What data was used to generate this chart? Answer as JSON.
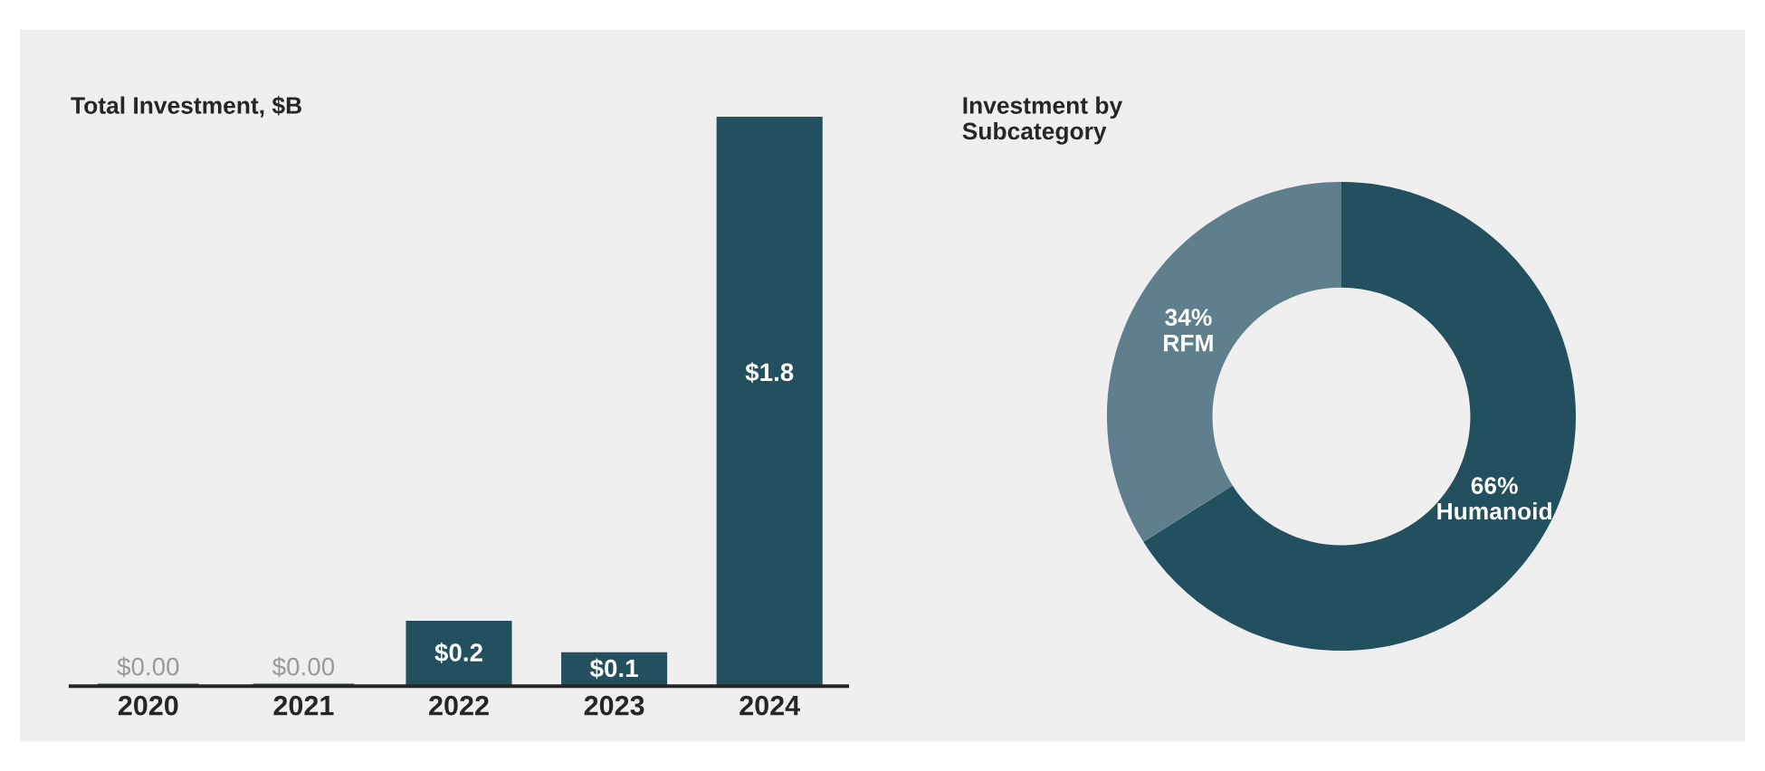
{
  "chart_data": [
    {
      "type": "bar",
      "title": "Total Investment, $B",
      "categories": [
        "2020",
        "2021",
        "2022",
        "2023",
        "2024"
      ],
      "values": [
        0.0,
        0.0,
        0.2,
        0.1,
        1.8
      ],
      "color": "#23505f",
      "value_labels": [
        "$0.00",
        "$0.00",
        "$0.2",
        "$0.1",
        "$1.8"
      ]
    },
    {
      "type": "donut",
      "title": "Investment by\nSubcategory",
      "categories": [
        "Humanoid",
        "RFM"
      ],
      "values": [
        66,
        34
      ],
      "colors": [
        "#23505f",
        "#5f7f8c"
      ],
      "value_labels": [
        "66%",
        "34%"
      ]
    }
  ]
}
